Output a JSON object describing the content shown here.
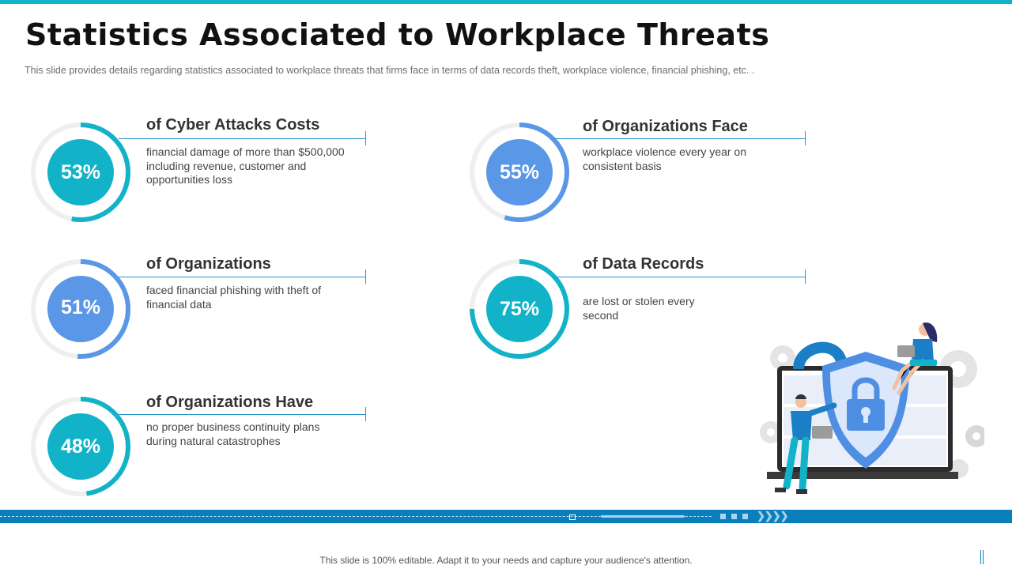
{
  "title": "Statistics Associated to Workplace Threats",
  "subtitle": "This slide provides  details regarding  statistics associated to workplace threats that firms face in terms of data records theft,  workplace violence,  financial phishing,  etc. .",
  "colors": {
    "teal": "#12b3c9",
    "blue": "#5a97e6",
    "track": "#efefef",
    "line": "#2a92c9"
  },
  "stats": [
    {
      "percent": "53%",
      "value": 53,
      "heading": "of Cyber Attacks Costs",
      "desc": "financial damage of more than $500,000 including revenue, customer and opportunities loss",
      "color": "teal"
    },
    {
      "percent": "55%",
      "value": 55,
      "heading": "of Organizations  Face",
      "desc": "workplace violence every year on consistent basis",
      "color": "blue"
    },
    {
      "percent": "51%",
      "value": 51,
      "heading": "of Organizations",
      "desc": "faced financial phishing with theft of financial data",
      "color": "blue"
    },
    {
      "percent": "75%",
      "value": 75,
      "heading": "of Data Records",
      "desc": "are lost or stolen every second",
      "color": "teal"
    },
    {
      "percent": "48%",
      "value": 48,
      "heading": "of Organizations  Have",
      "desc": "no proper business continuity plans during natural catastrophes",
      "color": "teal"
    }
  ],
  "illustration": {
    "name": "cyber-security-shield-illustration"
  },
  "footer": "This slide is 100% editable. Adapt it to your needs and capture your audience's attention."
}
